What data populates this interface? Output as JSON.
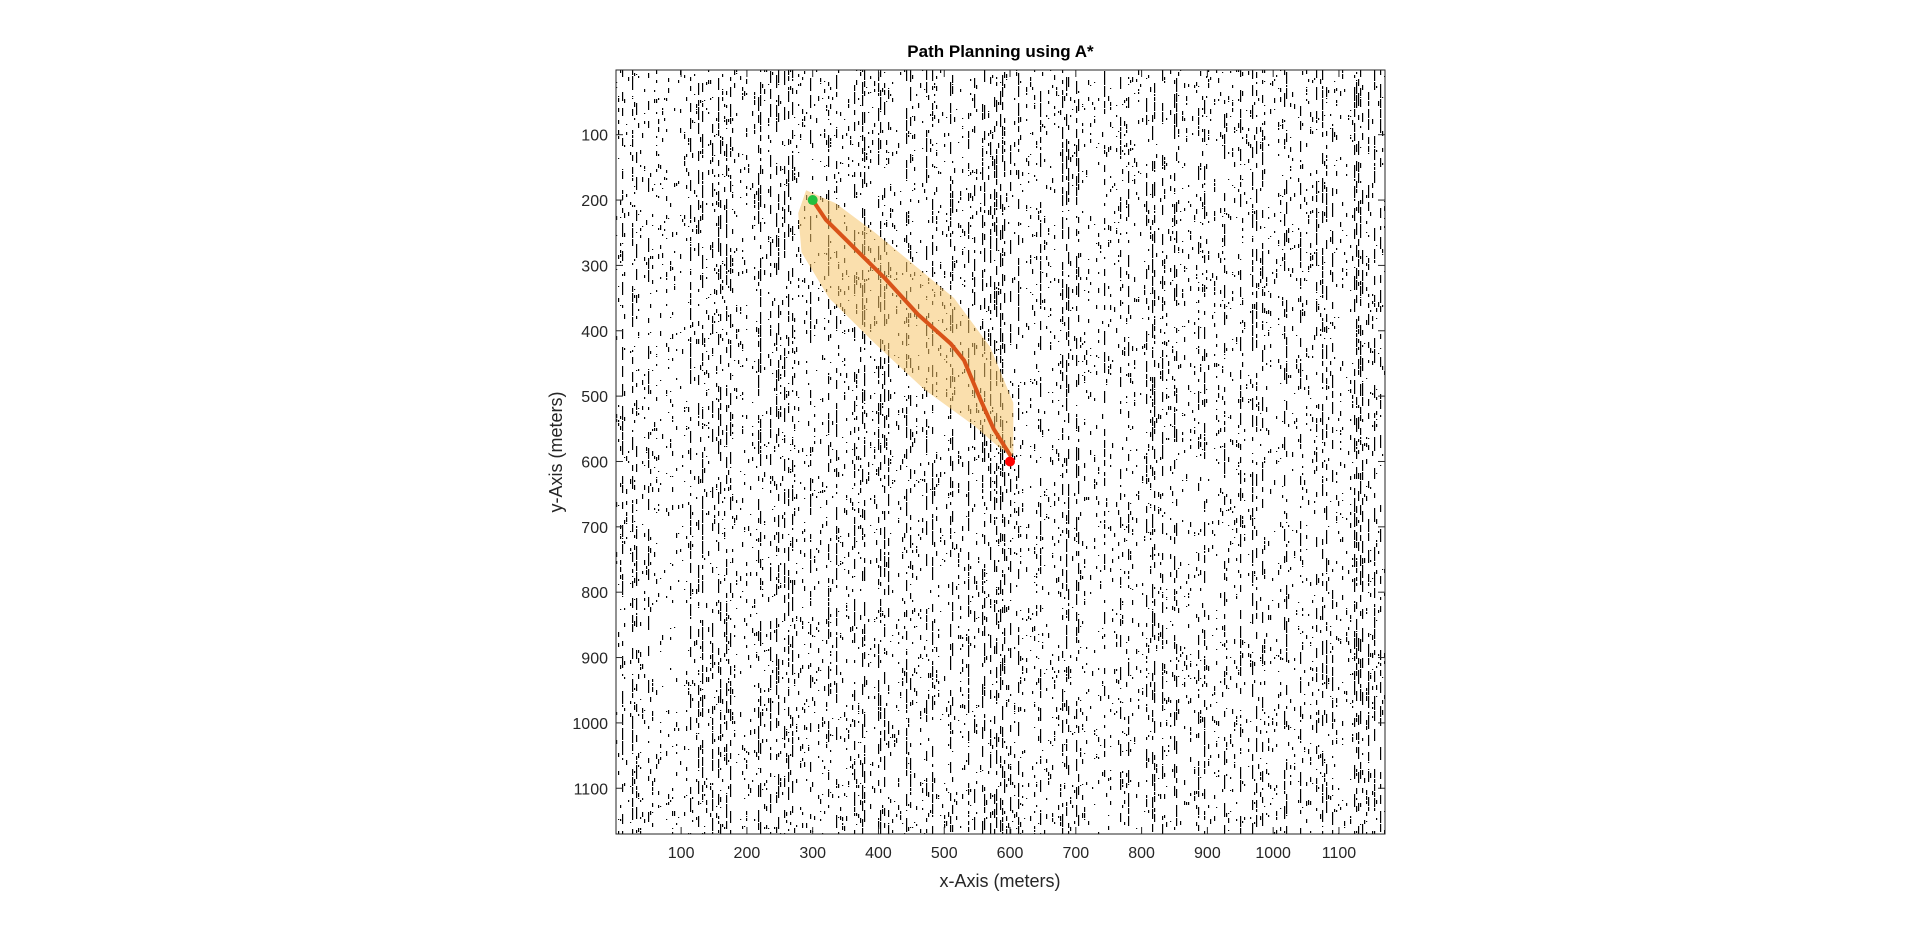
{
  "chart_data": {
    "type": "scatter",
    "title": "Path Planning using A*",
    "xlabel": "x-Axis (meters)",
    "ylabel": "y-Axis (meters)",
    "xlim": [
      1,
      1170
    ],
    "ylim": [
      1,
      1170
    ],
    "y_reversed": true,
    "xticks": [
      100,
      200,
      300,
      400,
      500,
      600,
      700,
      800,
      900,
      1000,
      1100
    ],
    "yticks": [
      100,
      200,
      300,
      400,
      500,
      600,
      700,
      800,
      900,
      1000,
      1100
    ],
    "background": "occupancy grid (random obstacles)",
    "start": {
      "x": 300,
      "y": 200,
      "color": "#22c040"
    },
    "goal": {
      "x": 600,
      "y": 600,
      "color": "#ff0000"
    },
    "path": {
      "color": "#d95319",
      "x": [
        300,
        320,
        365,
        410,
        460,
        510,
        530,
        555,
        575,
        600
      ],
      "y": [
        200,
        230,
        275,
        320,
        375,
        420,
        445,
        505,
        550,
        590
      ]
    },
    "explored_region": {
      "color": "#f5c46a",
      "x": [
        290,
        335,
        395,
        455,
        515,
        570,
        605,
        605,
        585,
        545,
        470,
        395,
        325,
        283,
        278
      ],
      "y": [
        185,
        205,
        250,
        300,
        350,
        425,
        510,
        590,
        580,
        545,
        490,
        420,
        350,
        280,
        220
      ]
    }
  }
}
